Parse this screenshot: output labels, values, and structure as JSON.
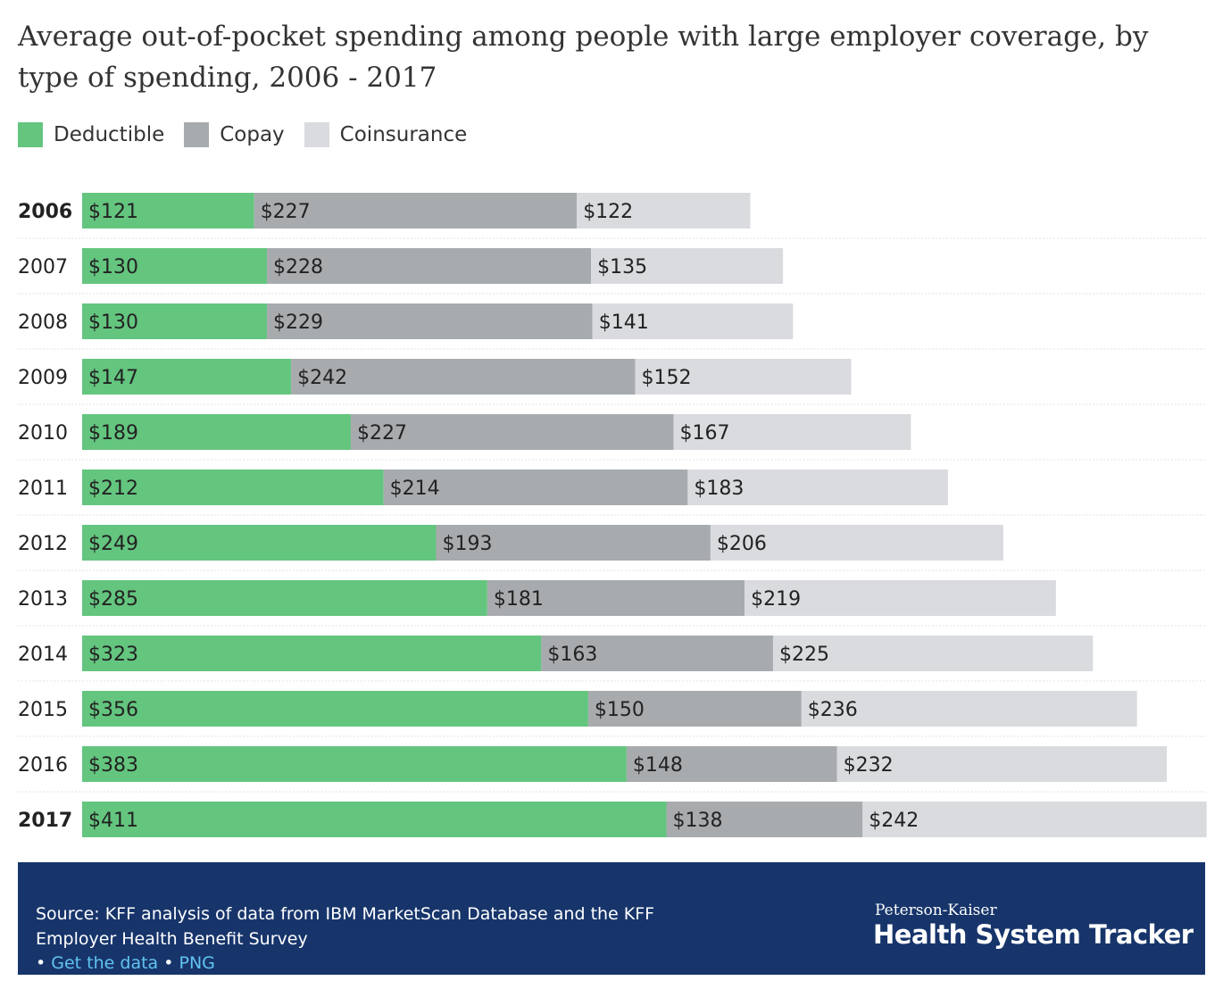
{
  "title": "Average out-of-pocket spending among people with large employer coverage, by type of spending, 2006 - 2017",
  "legend": {
    "items": [
      {
        "label": "Deductible",
        "color": "#64c57f"
      },
      {
        "label": "Copay",
        "color": "#a8abae"
      },
      {
        "label": "Coinsurance",
        "color": "#d9dbde"
      }
    ]
  },
  "colors": {
    "deductible": "#64c57f",
    "copay": "#a8abae",
    "coinsurance": "#d9dbde",
    "label_text": "#222222",
    "footer_bg": "#17356b",
    "link": "#62c3f0"
  },
  "chart_data": {
    "type": "bar",
    "orientation": "horizontal",
    "stacked": true,
    "title": "Average out-of-pocket spending among people with large employer coverage, by type of spending, 2006 - 2017",
    "categories": [
      "2006",
      "2007",
      "2008",
      "2009",
      "2010",
      "2011",
      "2012",
      "2013",
      "2014",
      "2015",
      "2016",
      "2017"
    ],
    "bold_categories": [
      "2006",
      "2017"
    ],
    "series": [
      {
        "name": "Deductible",
        "values": [
          121,
          130,
          130,
          147,
          189,
          212,
          249,
          285,
          323,
          356,
          383,
          411
        ]
      },
      {
        "name": "Copay",
        "values": [
          227,
          228,
          229,
          242,
          227,
          214,
          193,
          181,
          163,
          150,
          148,
          138
        ]
      },
      {
        "name": "Coinsurance",
        "values": [
          122,
          135,
          141,
          152,
          167,
          183,
          206,
          219,
          225,
          236,
          232,
          242
        ]
      }
    ],
    "value_prefix": "$",
    "legend_position": "top-left",
    "grid": false
  },
  "footer": {
    "source": "Source: KFF analysis of data from IBM MarketScan Database and the KFF Employer Health Benefit Survey",
    "bullet": "•",
    "link_data": "Get the data",
    "link_png": "PNG",
    "brand_top": "Peterson-Kaiser",
    "brand_main": "Health System Tracker"
  }
}
